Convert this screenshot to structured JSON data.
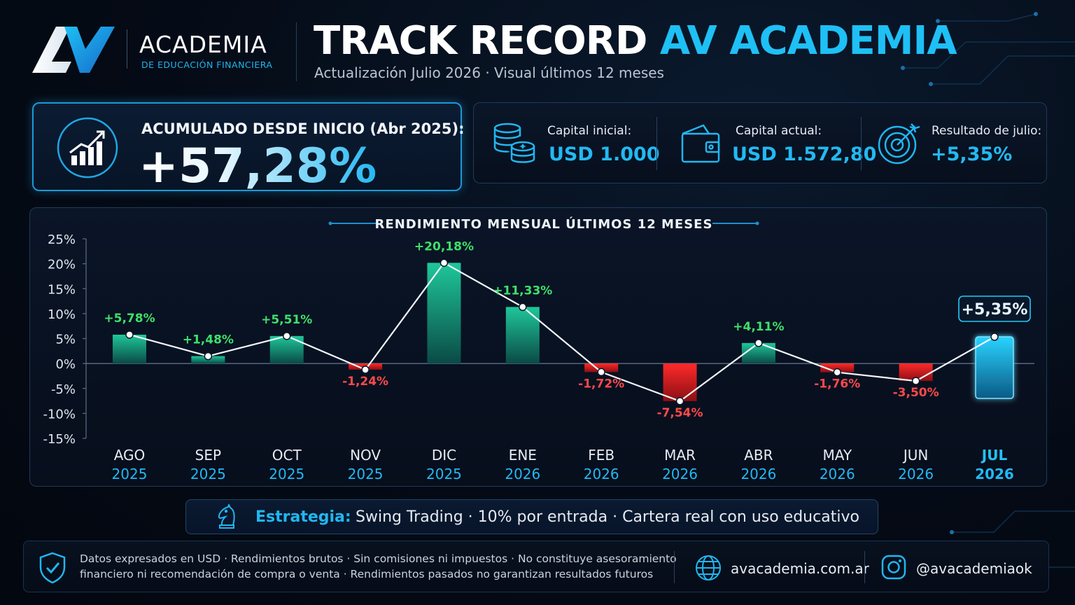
{
  "brand": {
    "name": "ACADEMIA",
    "subtitle": "DE EDUCACIÓN FINANCIERA",
    "logo_text": "AV"
  },
  "header": {
    "title_part1": "TRACK RECORD",
    "title_part2": "AV ACADEMIA",
    "subtitle": "Actualización Julio 2026  ·  Visual últimos 12 meses"
  },
  "accumulated": {
    "label": "ACUMULADO DESDE INICIO (Abr 2025):",
    "value": "+57,28%"
  },
  "info": [
    {
      "label": "Capital inicial:",
      "value": "USD 1.000",
      "icon": "coins-icon"
    },
    {
      "label": "Capital actual:",
      "value": "USD 1.572,80",
      "icon": "wallet-icon"
    },
    {
      "label": "Resultado de julio:",
      "value": "+5,35%",
      "icon": "target-icon"
    }
  ],
  "chart_data": {
    "type": "bar",
    "title": "RENDIMIENTO MENSUAL ÚLTIMOS 12 MESES",
    "categories": [
      "AGO",
      "SEP",
      "OCT",
      "NOV",
      "DIC",
      "ENE",
      "FEB",
      "MAR",
      "ABR",
      "MAY",
      "JUN",
      "JUL"
    ],
    "years": [
      "2025",
      "2025",
      "2025",
      "2025",
      "2025",
      "2026",
      "2026",
      "2026",
      "2026",
      "2026",
      "2026",
      "2026"
    ],
    "values": [
      5.78,
      1.48,
      5.51,
      -1.24,
      20.18,
      11.33,
      -1.72,
      -7.54,
      4.11,
      -1.76,
      -3.5,
      5.35
    ],
    "labels": [
      "+5,78%",
      "+1,48%",
      "+5,51%",
      "-1,24%",
      "+20,18%",
      "+11,33%",
      "-1,72%",
      "-7,54%",
      "+4,11%",
      "-1,76%",
      "-3,50%",
      "+5,35%"
    ],
    "ylim": [
      -15,
      25
    ],
    "yticks": [
      25,
      20,
      15,
      10,
      5,
      0,
      -5,
      -10,
      -15
    ],
    "ytick_labels": [
      "25%",
      "20%",
      "15%",
      "10%",
      "5%",
      "0%",
      "-5%",
      "-10%",
      "-15%"
    ],
    "highlight_index": 11,
    "line_overlay": true,
    "grid": false,
    "colors": {
      "positive": "#1fb98f",
      "negative": "#e8262b",
      "highlight": "#23c8f5",
      "pos_label": "#3fe06a",
      "neg_label": "#ff4a4a"
    }
  },
  "strategy": {
    "label": "Estrategia:",
    "text": "Swing Trading  ·  10% por entrada  ·  Cartera real con uso educativo"
  },
  "footer": {
    "disclaimer_line1": "Datos expresados en USD · Rendimientos brutos · Sin comisiones ni impuestos · No constituye asesoramiento",
    "disclaimer_line2": "financiero ni recomendación de compra o venta  · Rendimientos pasados no garantizan resultados futuros",
    "website": "avacademia.com.ar",
    "instagram": "@avacademiaok"
  }
}
